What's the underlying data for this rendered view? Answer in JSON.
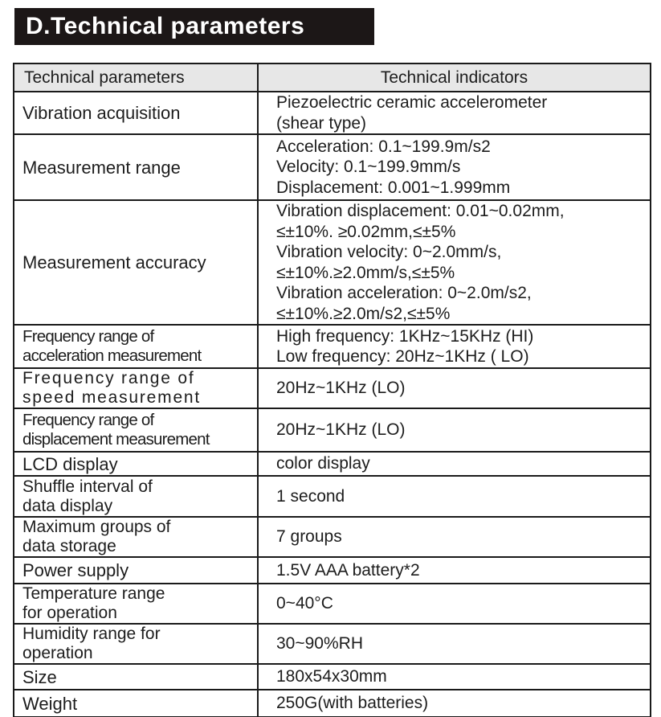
{
  "page": {
    "title": "D.Technical parameters"
  },
  "table": {
    "header": {
      "param": "Technical parameters",
      "indicator": "Technical indicators"
    },
    "rows": [
      {
        "param": "Vibration acquisition",
        "indicator": [
          "Piezoelectric ceramic accelerometer",
          "(shear type)"
        ]
      },
      {
        "param": "Measurement range",
        "indicator": [
          "Acceleration: 0.1~199.9m/s2",
          "Velocity: 0.1~199.9mm/s",
          "Displacement: 0.001~1.999mm"
        ]
      },
      {
        "param": "Measurement accuracy",
        "indicator": [
          "Vibration displacement: 0.01~0.02mm,",
          "≤±10%. ≥0.02mm,≤±5%",
          "Vibration velocity: 0~2.0mm/s,",
          "≤±10%.≥2.0mm/s,≤±5%",
          "Vibration acceleration: 0~2.0m/s2,",
          "≤±10%.≥2.0m/s2,≤±5%"
        ]
      },
      {
        "param": [
          "Frequency range of",
          "acceleration measurement"
        ],
        "indicator": [
          "High frequency: 1KHz~15KHz (HI)",
          "Low frequency: 20Hz~1KHz ( LO)"
        ]
      },
      {
        "param": [
          "Frequency range of",
          "speed measurement"
        ],
        "indicator": [
          "20Hz~1KHz (LO)"
        ]
      },
      {
        "param": [
          "Frequency range of",
          "displacement measurement"
        ],
        "indicator": [
          "20Hz~1KHz (LO)"
        ]
      },
      {
        "param": "LCD display",
        "indicator": [
          "color display"
        ]
      },
      {
        "param": [
          "Shuffle interval of",
          "data display"
        ],
        "indicator": [
          "1 second"
        ]
      },
      {
        "param": [
          "Maximum groups of",
          "data storage"
        ],
        "indicator": [
          "7 groups"
        ]
      },
      {
        "param": "Power supply",
        "indicator": [
          "1.5V AAA battery*2"
        ]
      },
      {
        "param": [
          "Temperature range",
          "for operation"
        ],
        "indicator": [
          "0~40°C"
        ]
      },
      {
        "param": [
          "Humidity range for",
          "operation"
        ],
        "indicator": [
          "30~90%RH"
        ]
      },
      {
        "param": "Size",
        "indicator": [
          "180x54x30mm"
        ]
      },
      {
        "param": "Weight",
        "indicator": [
          "250G(with batteries)"
        ]
      }
    ]
  },
  "colors": {
    "title_bg": "#1c1717",
    "title_text": "#ffffff",
    "header_bg": "#e7e7e7",
    "border": "#1a1a1a",
    "text": "#1d1d1d",
    "page_bg": "#ffffff"
  }
}
